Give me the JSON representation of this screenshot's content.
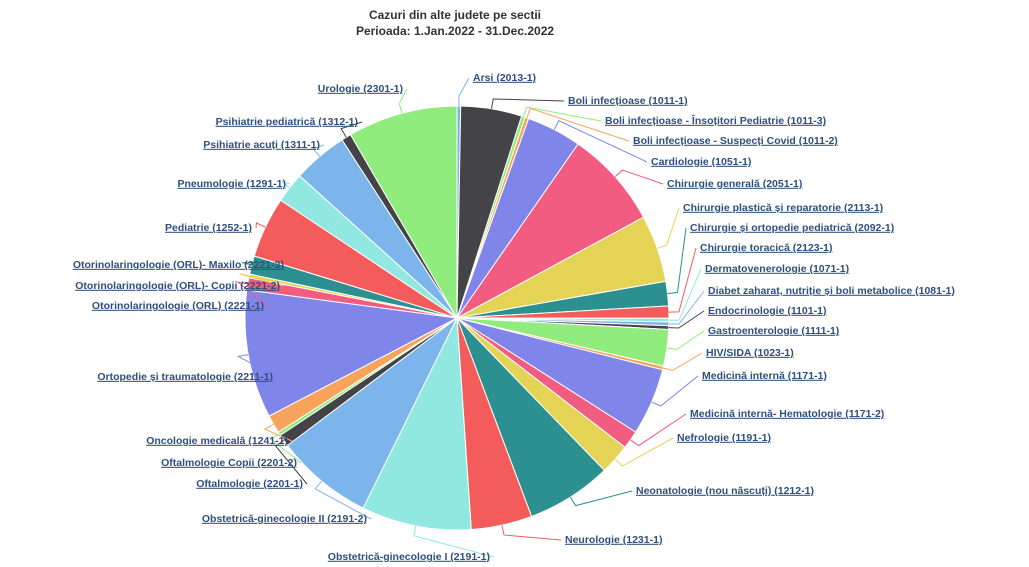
{
  "chart_data": {
    "type": "pie",
    "title": "Cazuri din alte judete pe sectii",
    "subtitle": "Perioada: 1.Jan.2022 - 31.Dec.2022",
    "categories": [
      "Arsi (2013-1)",
      "Boli infecțioase (1011-1)",
      "Boli infecțioase - Însoțitori Pediatrie (1011-3)",
      "Boli infecțioase - Suspecți Covid (1011-2)",
      "Cardiologie (1051-1)",
      "Chirurgie generală (2051-1)",
      "Chirurgie plastică și reparatorie (2113-1)",
      "Chirurgie și ortopedie pediatrică (2092-1)",
      "Chirurgie toracică (2123-1)",
      "Dermatovenerologie (1071-1)",
      "Diabet zaharat, nutriție și boli metabolice (1081-1)",
      "Endocrinologie (1101-1)",
      "Gastroenterologie (1111-1)",
      "HIV/SIDA (1023-1)",
      "Medicină internă (1171-1)",
      "Medicină internă- Hematologie (1171-2)",
      "Nefrologie (1191-1)",
      "Neonatologie (nou născuți) (1212-1)",
      "Neurologie (1231-1)",
      "Obstetrică-ginecologie I (2191-1)",
      "Obstetrică-ginecologie II (2191-2)",
      "Oftalmologie (2201-1)",
      "Oftalmologie Copii (2201-2)",
      "Oncologie medicală (1241-1)",
      "Ortopedie și traumatologie (2211-1)",
      "Otorinolaringologie (ORL) (2221-1)",
      "Otorinolaringologie (ORL)- Copii (2221-2)",
      "Otorinolaringologie (ORL)- Maxilo (2221-3)",
      "Pediatrie (1252-1)",
      "Pneumologie (1291-1)",
      "Psihiatrie acuți (1311-1)",
      "Psihiatrie pediatrică (1312-1)",
      "Urologie (2301-1)"
    ],
    "values": [
      0.3,
      5,
      0.3,
      0.3,
      4.5,
      8,
      5.5,
      2,
      1,
      0.3,
      0.3,
      0.3,
      3,
      0.3,
      5.5,
      1.5,
      2.5,
      7,
      5,
      9,
      8,
      1,
      0.3,
      1.5,
      10.5,
      1,
      0.3,
      1.5,
      5,
      2.5,
      4.5,
      0.8,
      9
    ],
    "colors": [
      "#7cb5ec",
      "#434348",
      "#90ed7d",
      "#f7a35c",
      "#8085e9",
      "#f15c80",
      "#e4d354",
      "#2b908f",
      "#f45b5b",
      "#91e8e1",
      "#7cb5ec",
      "#434348",
      "#90ed7d",
      "#f7a35c",
      "#8085e9",
      "#f15c80",
      "#e4d354",
      "#2b908f",
      "#f45b5b",
      "#91e8e1",
      "#7cb5ec",
      "#434348",
      "#90ed7d",
      "#f7a35c",
      "#8085e9",
      "#f15c80",
      "#e4d354",
      "#2b908f",
      "#f45b5b",
      "#91e8e1",
      "#7cb5ec",
      "#434348",
      "#90ed7d"
    ]
  }
}
